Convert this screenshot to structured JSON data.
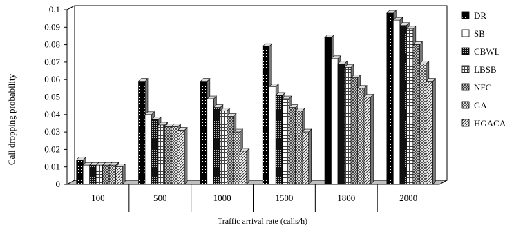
{
  "chart_data": {
    "type": "bar",
    "title": "",
    "xlabel": "Traffic arrival rate (calls/h)",
    "ylabel": "Call dropping probability",
    "ylim": [
      0,
      0.1
    ],
    "yticks": [
      "0",
      "0.01",
      "0.02",
      "0.03",
      "0.04",
      "0.05",
      "0.06",
      "0.07",
      "0.08",
      "0.09",
      "0.1"
    ],
    "categories": [
      "100",
      "500",
      "1000",
      "1500",
      "1800",
      "2000"
    ],
    "legend_position": "right",
    "grid": false,
    "style": "3d-clustered-bar",
    "series": [
      {
        "name": "DR",
        "pattern": "dark-dots",
        "values": [
          0.014,
          0.059,
          0.059,
          0.079,
          0.084,
          0.098
        ]
      },
      {
        "name": "SB",
        "pattern": "white",
        "values": [
          0.011,
          0.04,
          0.049,
          0.056,
          0.072,
          0.094
        ]
      },
      {
        "name": "CBWL",
        "pattern": "dark-grid",
        "values": [
          0.011,
          0.037,
          0.044,
          0.051,
          0.069,
          0.091
        ]
      },
      {
        "name": "LBSB",
        "pattern": "light-grid",
        "values": [
          0.011,
          0.034,
          0.042,
          0.049,
          0.067,
          0.089
        ]
      },
      {
        "name": "NFC",
        "pattern": "dark-check",
        "values": [
          0.011,
          0.033,
          0.039,
          0.044,
          0.061,
          0.08
        ]
      },
      {
        "name": "GA",
        "pattern": "light-check",
        "values": [
          0.011,
          0.033,
          0.03,
          0.042,
          0.055,
          0.069
        ]
      },
      {
        "name": "HGACA",
        "pattern": "diagonal",
        "values": [
          0.01,
          0.031,
          0.019,
          0.03,
          0.05,
          0.059
        ]
      }
    ]
  }
}
